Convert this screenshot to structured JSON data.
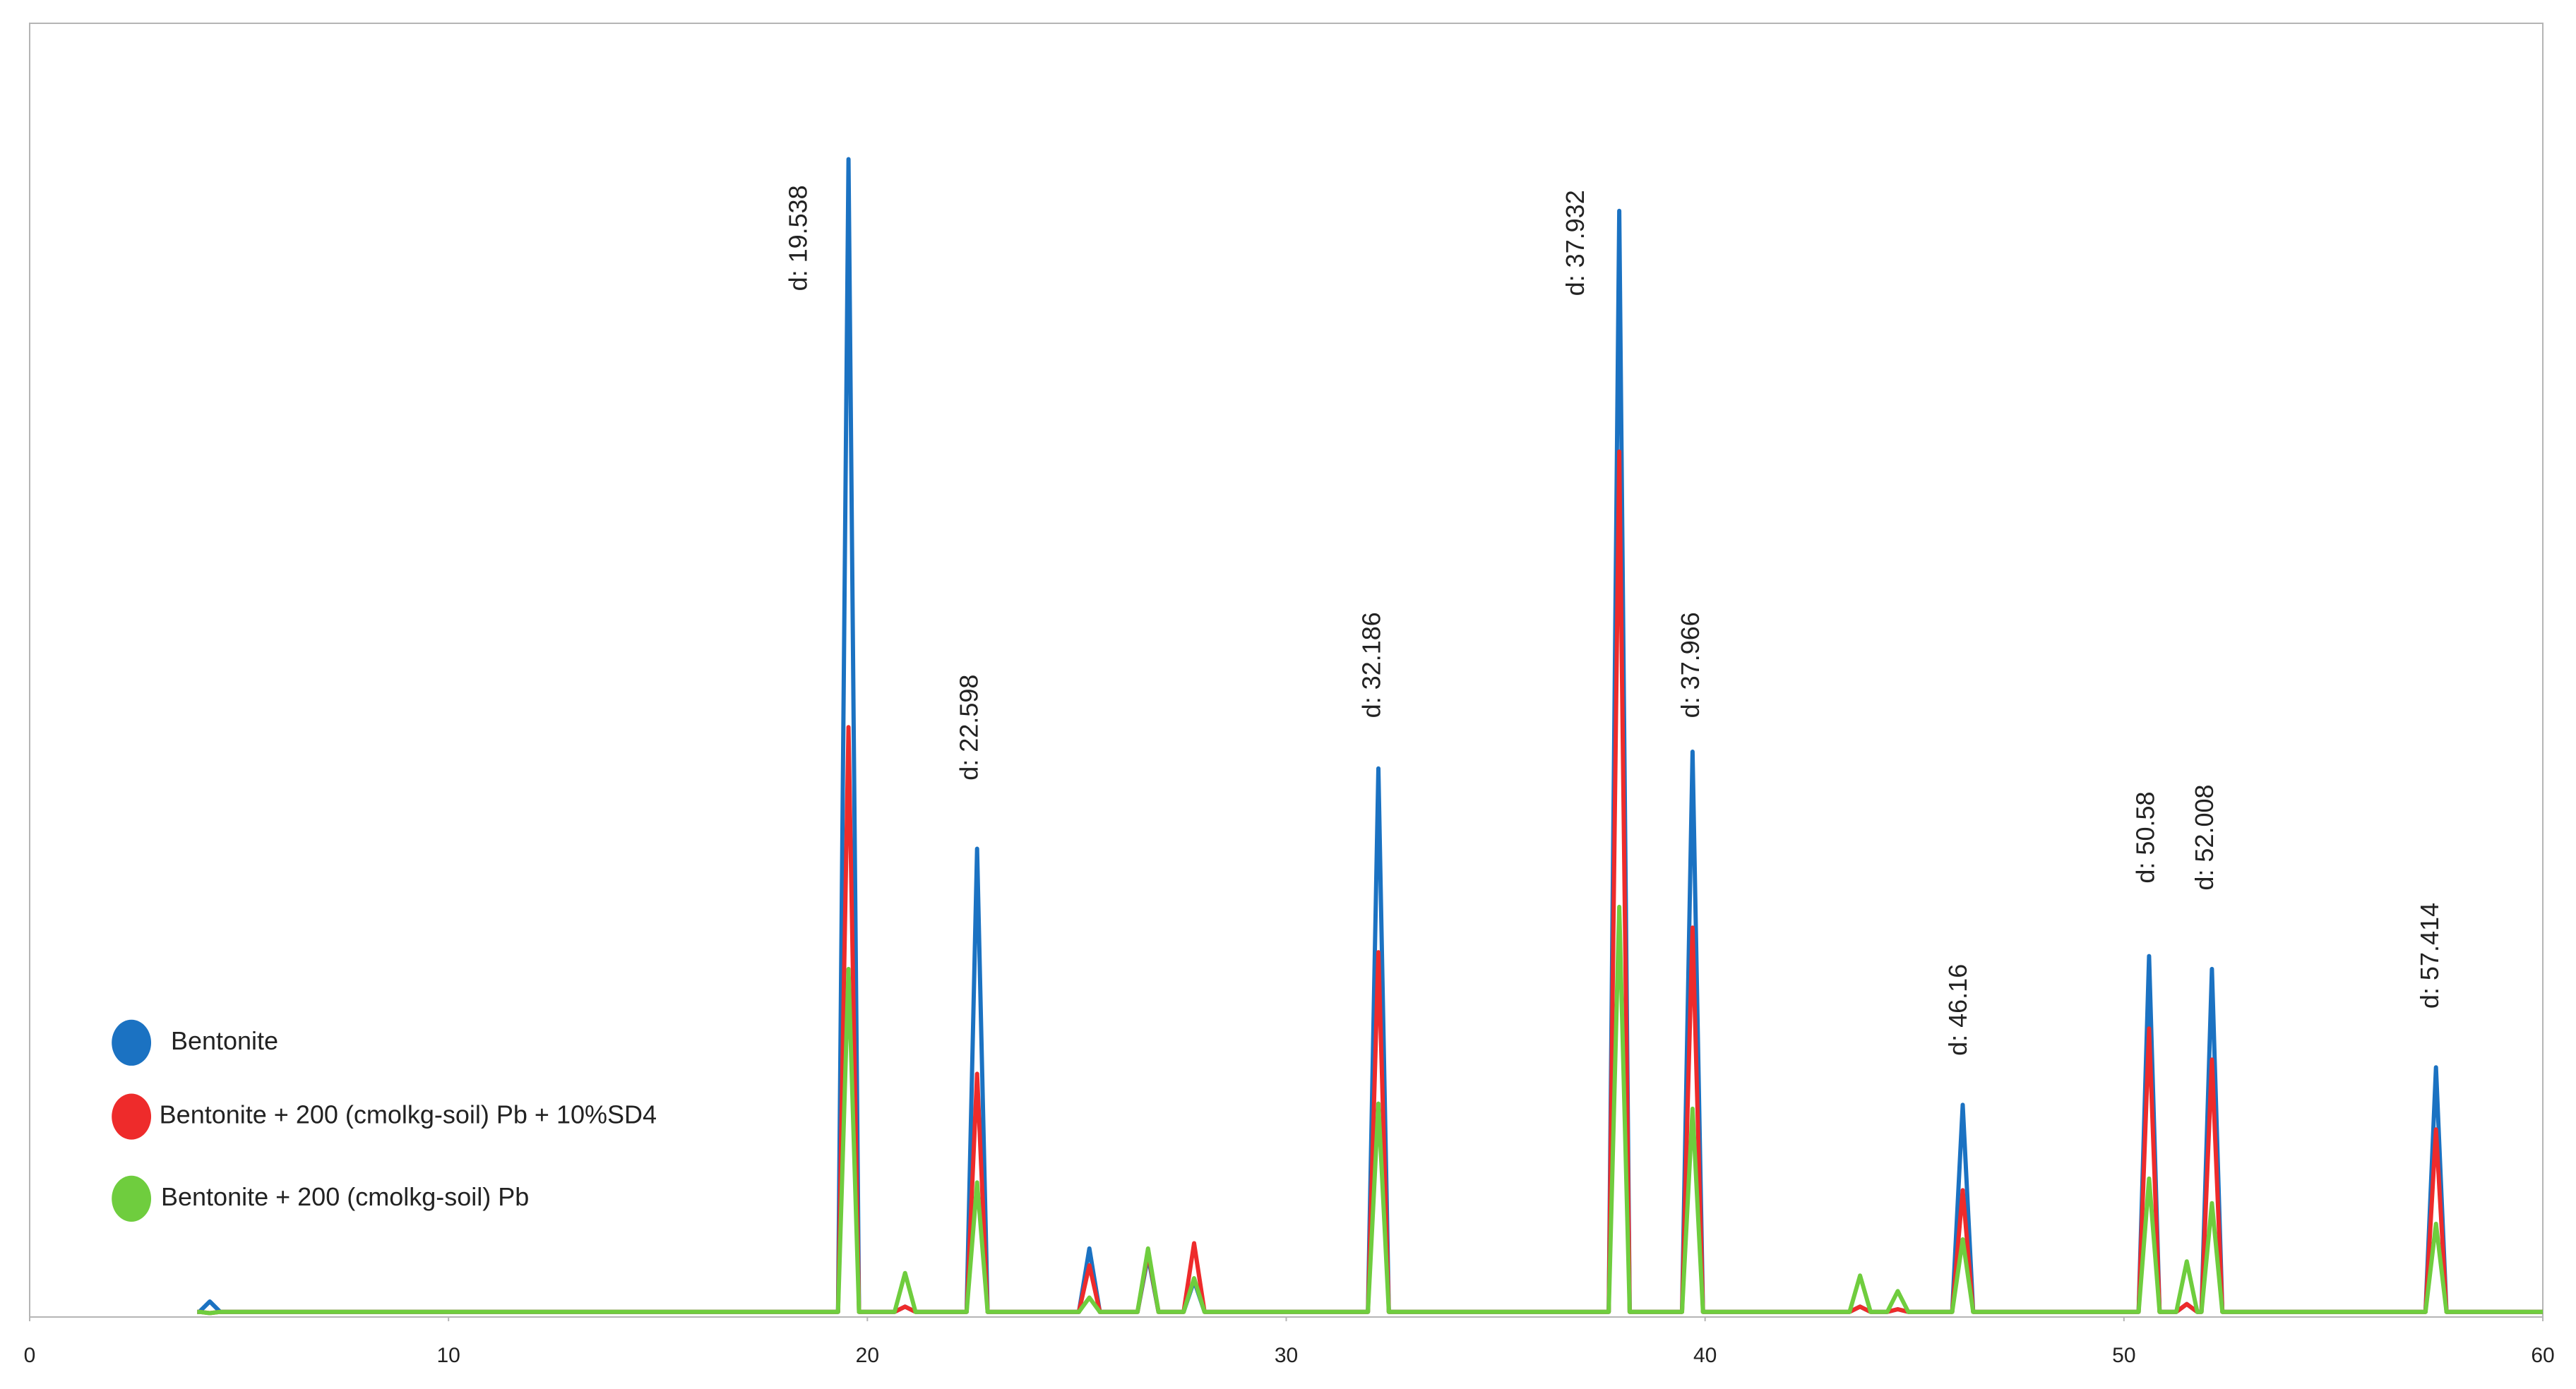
{
  "chart_data": {
    "type": "line",
    "x": [
      4.0,
      4.05,
      4.3,
      4.55,
      19.3,
      19.55,
      19.8,
      20.65,
      20.9,
      21.15,
      22.37,
      22.62,
      22.87,
      25.05,
      25.3,
      25.55,
      26.45,
      26.7,
      26.95,
      27.55,
      27.8,
      28.05,
      31.95,
      32.2,
      32.45,
      37.7,
      37.95,
      38.2,
      39.45,
      39.7,
      39.95,
      43.45,
      43.7,
      43.95,
      44.35,
      44.6,
      44.85,
      45.9,
      46.15,
      46.4,
      50.35,
      50.6,
      50.85,
      51.25,
      51.5,
      51.75,
      51.85,
      52.1,
      52.35,
      57.2,
      57.45,
      57.7,
      60
    ],
    "series": [
      {
        "name": "Bentonite",
        "color": "#1b72c2",
        "values": [
          0.4,
          0.4,
          1.2,
          0.4,
          0.4,
          89.5,
          0.4,
          0.4,
          0.8,
          0.4,
          0.4,
          36.2,
          0.4,
          0.4,
          5.3,
          0.4,
          0.4,
          4.7,
          0.4,
          0.4,
          2.8,
          0.4,
          0.4,
          42.4,
          0.4,
          0.4,
          85.5,
          0.4,
          0.4,
          43.7,
          0.4,
          0.4,
          0.8,
          0.4,
          0.4,
          0.6,
          0.4,
          0.4,
          16.4,
          0.4,
          0.4,
          27.9,
          0.4,
          0.4,
          1,
          0.4,
          0.4,
          26.9,
          0.4,
          0.4,
          19.3,
          0.4,
          0.4
        ]
      },
      {
        "name": "Bentonite + 200 (cmolkg-soil) Pb + 10%SD4",
        "color": "#ee2b2b",
        "values": [
          0.4,
          0.4,
          0.3,
          0.4,
          0.4,
          45.6,
          0.4,
          0.4,
          0.8,
          0.4,
          0.4,
          18.8,
          0.4,
          0.4,
          4,
          0.4,
          0.4,
          5,
          0.4,
          0.4,
          5.7,
          0.4,
          0.4,
          28.2,
          0.4,
          0.4,
          66.9,
          0.4,
          0.4,
          30.1,
          0.4,
          0.4,
          0.8,
          0.4,
          0.4,
          0.6,
          0.4,
          0.4,
          9.8,
          0.4,
          0.4,
          22.3,
          0.4,
          0.4,
          1,
          0.4,
          0.4,
          19.9,
          0.4,
          0.4,
          14.5,
          0.4,
          0.4
        ]
      },
      {
        "name": "Bentonite + 200 (cmolkg-soil) Pb",
        "color": "#6fcd3e",
        "values": [
          0.4,
          0.4,
          0.3,
          0.4,
          0.4,
          26.9,
          0.4,
          0.4,
          3.4,
          0.4,
          0.4,
          10.4,
          0.4,
          0.4,
          1.5,
          0.4,
          0.4,
          5.3,
          0.4,
          0.4,
          3,
          0.4,
          0.4,
          16.5,
          0.4,
          0.4,
          31.7,
          0.4,
          0.4,
          16.1,
          0.4,
          0.4,
          3.2,
          0.4,
          0.4,
          2,
          0.4,
          0.4,
          6,
          0.4,
          0.4,
          10.7,
          0.4,
          0.4,
          4.3,
          0.4,
          0.4,
          8.8,
          0.4,
          0.4,
          7.2,
          0.4,
          0.4
        ]
      }
    ],
    "annotations": [
      "d: 19.538",
      "d: 22.598",
      "d: 32.186",
      "d: 37.932",
      "d: 37.966",
      "d: 46.16",
      "d: 50.58",
      "d: 52.008",
      "d: 57.414"
    ],
    "xlim": [
      0,
      60
    ],
    "xticks": [
      0,
      10,
      20,
      30,
      40,
      50,
      60
    ],
    "ylim": [
      0,
      100
    ],
    "grid": false,
    "legend": "lower left"
  }
}
